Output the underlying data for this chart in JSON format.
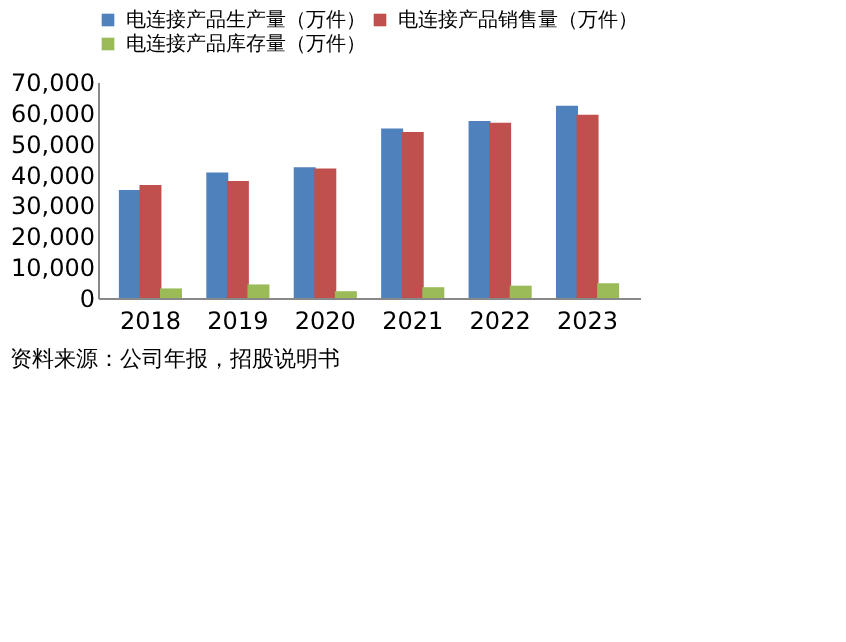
{
  "chart_data": {
    "type": "bar",
    "categories": [
      "2018",
      "2019",
      "2020",
      "2021",
      "2022",
      "2023"
    ],
    "series": [
      {
        "name": "电连接产品生产量（万件）",
        "color": "#4f81bd",
        "values": [
          35000,
          40700,
          42400,
          54900,
          57400,
          62300
        ]
      },
      {
        "name": "电连接产品销售量（万件）",
        "color": "#c0504d",
        "values": [
          36600,
          37900,
          42000,
          53800,
          56800,
          59400
        ]
      },
      {
        "name": "电连接产品库存量（万件）",
        "color": "#9bbb59",
        "values": [
          3100,
          4400,
          2200,
          3500,
          4000,
          4800
        ]
      }
    ],
    "ylim": [
      0,
      70000
    ],
    "yticks": [
      {
        "value": 0,
        "label": "0"
      },
      {
        "value": 10000,
        "label": "10,000"
      },
      {
        "value": 20000,
        "label": "20,000"
      },
      {
        "value": 30000,
        "label": "30,000"
      },
      {
        "value": 40000,
        "label": "40,000"
      },
      {
        "value": 50000,
        "label": "50,000"
      },
      {
        "value": 60000,
        "label": "60,000"
      },
      {
        "value": 70000,
        "label": "70,000"
      }
    ],
    "grid": false,
    "legend": "top",
    "annotations": [
      "资料来源：公司年报，招股说明书"
    ]
  }
}
